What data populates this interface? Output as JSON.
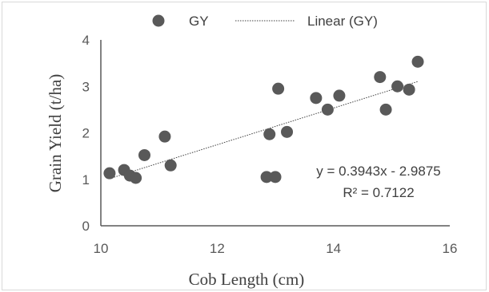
{
  "chart_data": {
    "type": "scatter",
    "title": "",
    "xlabel": "Cob Length (cm)",
    "ylabel": "Grain Yield (t/ha)",
    "xlim": [
      10,
      16
    ],
    "ylim": [
      0,
      4
    ],
    "x_ticks": [
      "10",
      "12",
      "14",
      "16"
    ],
    "y_ticks": [
      "0",
      "1",
      "2",
      "3",
      "4"
    ],
    "legend_position": "top",
    "series": [
      {
        "name": "GY",
        "color": "#595959",
        "points": [
          {
            "x": 10.15,
            "y": 1.13
          },
          {
            "x": 10.4,
            "y": 1.2
          },
          {
            "x": 10.5,
            "y": 1.08
          },
          {
            "x": 10.6,
            "y": 1.03
          },
          {
            "x": 10.75,
            "y": 1.52
          },
          {
            "x": 11.1,
            "y": 1.92
          },
          {
            "x": 11.2,
            "y": 1.3
          },
          {
            "x": 12.85,
            "y": 1.05
          },
          {
            "x": 12.9,
            "y": 1.97
          },
          {
            "x": 13.0,
            "y": 1.05
          },
          {
            "x": 13.05,
            "y": 2.95
          },
          {
            "x": 13.2,
            "y": 2.02
          },
          {
            "x": 13.7,
            "y": 2.75
          },
          {
            "x": 13.9,
            "y": 2.5
          },
          {
            "x": 14.1,
            "y": 2.8
          },
          {
            "x": 14.8,
            "y": 3.2
          },
          {
            "x": 14.9,
            "y": 2.5
          },
          {
            "x": 15.1,
            "y": 3.0
          },
          {
            "x": 15.3,
            "y": 2.93
          },
          {
            "x": 15.45,
            "y": 3.53
          }
        ]
      }
    ],
    "trendline": {
      "name": "Linear (GY)",
      "slope": 0.3943,
      "intercept": -2.9875,
      "x_range": [
        10.15,
        15.45
      ],
      "color": "#404040",
      "style": "dotted"
    },
    "annotations": {
      "equation": "y = 0.3943x - 2.9875",
      "r_squared": "R² = 0.7122"
    },
    "gridlines": false,
    "axis_color": "#595959"
  }
}
